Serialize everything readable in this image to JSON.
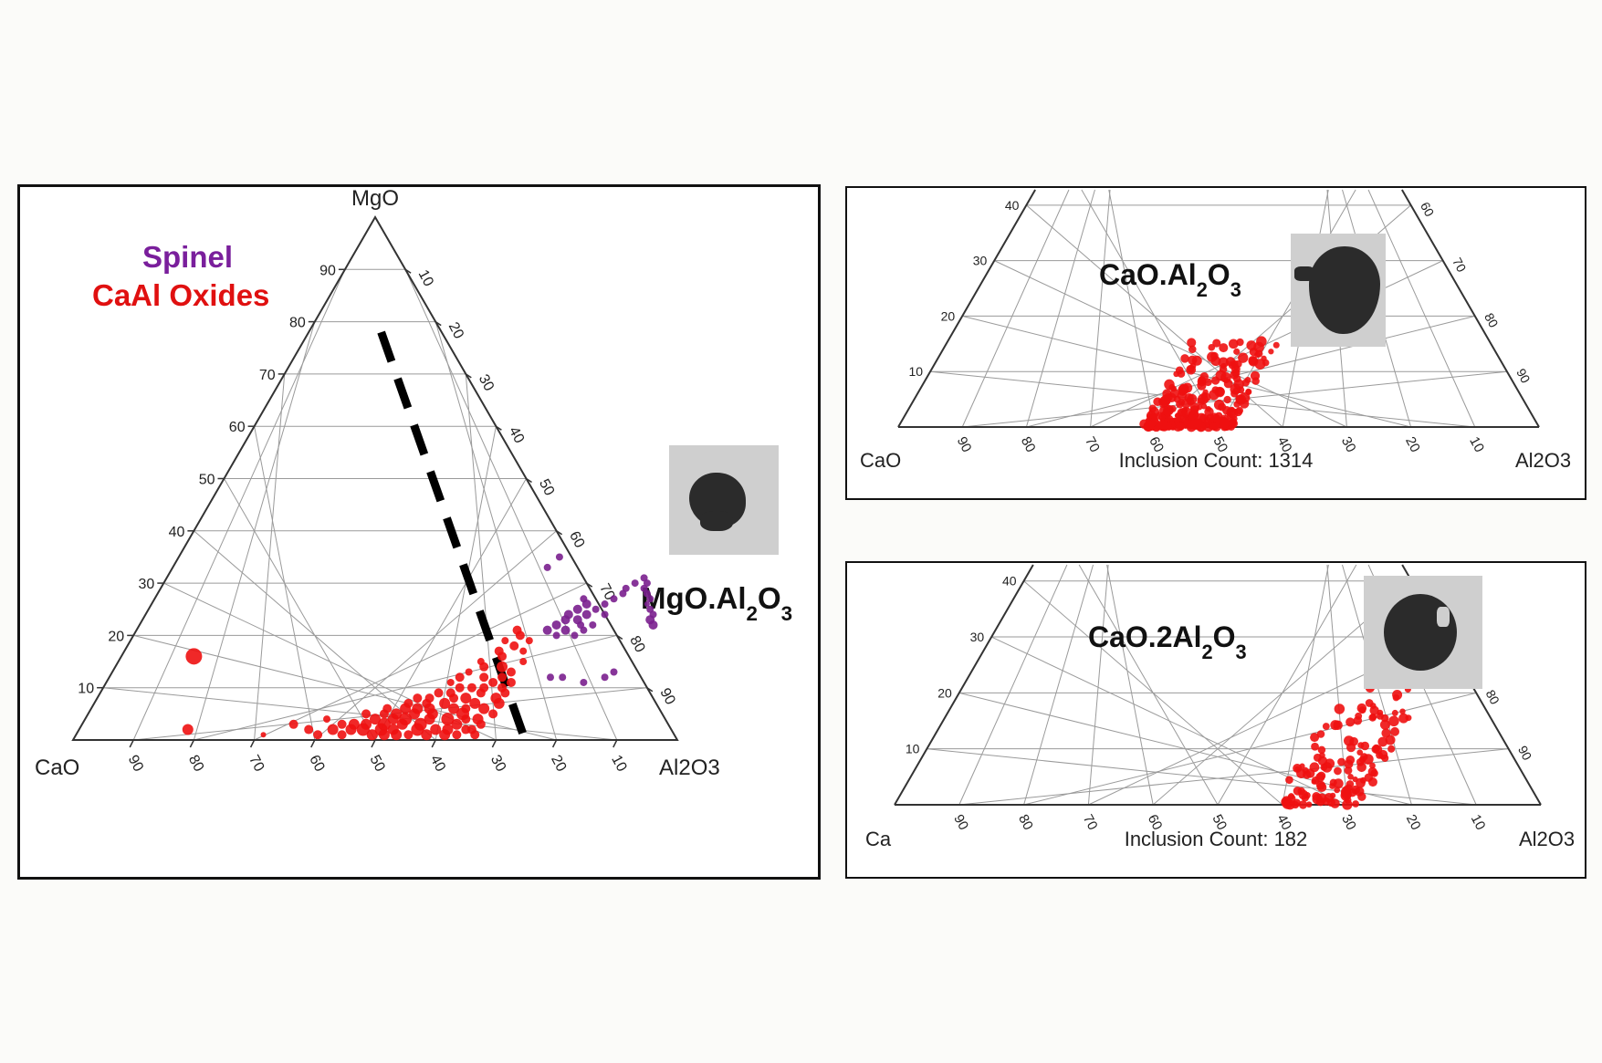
{
  "legend": {
    "spinel": {
      "label": "Spinel",
      "color": "#7a1f9c"
    },
    "caal": {
      "label": "CaAl Oxides",
      "color": "#e01010"
    }
  },
  "colors": {
    "red": "#ee1111",
    "purple": "#7a1f8e",
    "grid": "#9a9a9a",
    "axis": "#333333",
    "dash": "#000000"
  },
  "chart_data": [
    {
      "type": "scatter",
      "subtype": "ternary",
      "apex_labels": {
        "top": "MgO",
        "left": "CaO",
        "right": "Al2O3"
      },
      "left_ticks": [
        "10",
        "20",
        "30",
        "40",
        "50",
        "60",
        "70",
        "80",
        "90"
      ],
      "right_ticks": [
        "10",
        "20",
        "30",
        "40",
        "50",
        "60",
        "70",
        "80",
        "90"
      ],
      "bottom_ticks": [
        "90",
        "80",
        "70",
        "60",
        "50",
        "40",
        "30",
        "20",
        "10"
      ],
      "annotation": "MgO.Al2O3",
      "grid": true,
      "dashed_line": {
        "from": {
          "mgo": 78,
          "al2o3": 12
        },
        "to": {
          "mgo": 1,
          "al2o3": 74
        }
      },
      "series": [
        {
          "name": "CaAl Oxides",
          "color": "#ee1111",
          "points": [
            {
              "mgo": 16,
              "al2o3": 12,
              "s": 9
            },
            {
              "mgo": 2,
              "al2o3": 18,
              "s": 6
            },
            {
              "mgo": 1,
              "al2o3": 31,
              "s": 3
            },
            {
              "mgo": 3,
              "al2o3": 35,
              "s": 5
            },
            {
              "mgo": 2,
              "al2o3": 38,
              "s": 5
            },
            {
              "mgo": 4,
              "al2o3": 40,
              "s": 4
            },
            {
              "mgo": 2,
              "al2o3": 42,
              "s": 6
            },
            {
              "mgo": 1,
              "al2o3": 44,
              "s": 5
            },
            {
              "mgo": 3,
              "al2o3": 45,
              "s": 6
            },
            {
              "mgo": 5,
              "al2o3": 46,
              "s": 5
            },
            {
              "mgo": 2,
              "al2o3": 47,
              "s": 7
            },
            {
              "mgo": 4,
              "al2o3": 48,
              "s": 6
            },
            {
              "mgo": 6,
              "al2o3": 49,
              "s": 5
            },
            {
              "mgo": 1,
              "al2o3": 49,
              "s": 6
            },
            {
              "mgo": 3,
              "al2o3": 50,
              "s": 7
            },
            {
              "mgo": 5,
              "al2o3": 51,
              "s": 6
            },
            {
              "mgo": 7,
              "al2o3": 52,
              "s": 5
            },
            {
              "mgo": 2,
              "al2o3": 52,
              "s": 6
            },
            {
              "mgo": 4,
              "al2o3": 53,
              "s": 7
            },
            {
              "mgo": 6,
              "al2o3": 54,
              "s": 6
            },
            {
              "mgo": 8,
              "al2o3": 55,
              "s": 5
            },
            {
              "mgo": 1,
              "al2o3": 55,
              "s": 5
            },
            {
              "mgo": 3,
              "al2o3": 56,
              "s": 7
            },
            {
              "mgo": 5,
              "al2o3": 57,
              "s": 6
            },
            {
              "mgo": 7,
              "al2o3": 58,
              "s": 6
            },
            {
              "mgo": 9,
              "al2o3": 58,
              "s": 5
            },
            {
              "mgo": 2,
              "al2o3": 59,
              "s": 6
            },
            {
              "mgo": 4,
              "al2o3": 60,
              "s": 7
            },
            {
              "mgo": 6,
              "al2o3": 60,
              "s": 6
            },
            {
              "mgo": 8,
              "al2o3": 61,
              "s": 6
            },
            {
              "mgo": 10,
              "al2o3": 61,
              "s": 5
            },
            {
              "mgo": 3,
              "al2o3": 62,
              "s": 6
            },
            {
              "mgo": 5,
              "al2o3": 62,
              "s": 7
            },
            {
              "mgo": 7,
              "al2o3": 63,
              "s": 6
            },
            {
              "mgo": 9,
              "al2o3": 63,
              "s": 5
            },
            {
              "mgo": 11,
              "al2o3": 64,
              "s": 5
            },
            {
              "mgo": 2,
              "al2o3": 64,
              "s": 5
            },
            {
              "mgo": 4,
              "al2o3": 65,
              "s": 6
            },
            {
              "mgo": 6,
              "al2o3": 65,
              "s": 6
            },
            {
              "mgo": 8,
              "al2o3": 66,
              "s": 6
            },
            {
              "mgo": 10,
              "al2o3": 66,
              "s": 5
            },
            {
              "mgo": 12,
              "al2o3": 65,
              "s": 5
            },
            {
              "mgo": 14,
              "al2o3": 64,
              "s": 6
            },
            {
              "mgo": 16,
              "al2o3": 63,
              "s": 5
            },
            {
              "mgo": 18,
              "al2o3": 64,
              "s": 5
            },
            {
              "mgo": 20,
              "al2o3": 64,
              "s": 5
            },
            {
              "mgo": 13,
              "al2o3": 66,
              "s": 5
            },
            {
              "mgo": 15,
              "al2o3": 67,
              "s": 4
            },
            {
              "mgo": 11,
              "al2o3": 67,
              "s": 5
            },
            {
              "mgo": 17,
              "al2o3": 66,
              "s": 4
            },
            {
              "mgo": 19,
              "al2o3": 66,
              "s": 4
            },
            {
              "mgo": 3,
              "al2o3": 66,
              "s": 5
            },
            {
              "mgo": 5,
              "al2o3": 67,
              "s": 5
            },
            {
              "mgo": 7,
              "al2o3": 67,
              "s": 6
            },
            {
              "mgo": 9,
              "al2o3": 67,
              "s": 5
            },
            {
              "mgo": 1,
              "al2o3": 66,
              "s": 5
            },
            {
              "mgo": 2,
              "al2o3": 61,
              "s": 6
            },
            {
              "mgo": 4,
              "al2o3": 57,
              "s": 6
            },
            {
              "mgo": 6,
              "al2o3": 56,
              "s": 6
            },
            {
              "mgo": 8,
              "al2o3": 59,
              "s": 5
            },
            {
              "mgo": 10,
              "al2o3": 59,
              "s": 5
            },
            {
              "mgo": 12,
              "al2o3": 62,
              "s": 5
            },
            {
              "mgo": 14,
              "al2o3": 61,
              "s": 5
            },
            {
              "mgo": 11,
              "al2o3": 57,
              "s": 4
            },
            {
              "mgo": 13,
              "al2o3": 59,
              "s": 4
            },
            {
              "mgo": 3,
              "al2o3": 53,
              "s": 6
            },
            {
              "mgo": 5,
              "al2o3": 54,
              "s": 6
            },
            {
              "mgo": 7,
              "al2o3": 55,
              "s": 5
            },
            {
              "mgo": 9,
              "al2o3": 56,
              "s": 5
            },
            {
              "mgo": 1,
              "al2o3": 51,
              "s": 6
            },
            {
              "mgo": 3,
              "al2o3": 47,
              "s": 6
            },
            {
              "mgo": 5,
              "al2o3": 49,
              "s": 5
            },
            {
              "mgo": 2,
              "al2o3": 50,
              "s": 7
            },
            {
              "mgo": 4,
              "al2o3": 51,
              "s": 6
            },
            {
              "mgo": 6,
              "al2o3": 52,
              "s": 6
            },
            {
              "mgo": 8,
              "al2o3": 53,
              "s": 5
            },
            {
              "mgo": 1,
              "al2o3": 53,
              "s": 6
            },
            {
              "mgo": 2,
              "al2o3": 56,
              "s": 7
            },
            {
              "mgo": 1,
              "al2o3": 58,
              "s": 6
            },
            {
              "mgo": 1,
              "al2o3": 61,
              "s": 6
            },
            {
              "mgo": 1,
              "al2o3": 63,
              "s": 5
            },
            {
              "mgo": 2,
              "al2o3": 45,
              "s": 6
            },
            {
              "mgo": 1,
              "al2o3": 40,
              "s": 5
            },
            {
              "mgo": 3,
              "al2o3": 43,
              "s": 5
            },
            {
              "mgo": 12,
              "al2o3": 58,
              "s": 5
            },
            {
              "mgo": 15,
              "al2o3": 60,
              "s": 4
            },
            {
              "mgo": 17,
              "al2o3": 62,
              "s": 5
            },
            {
              "mgo": 19,
              "al2o3": 62,
              "s": 4
            },
            {
              "mgo": 21,
              "al2o3": 63,
              "s": 5
            },
            {
              "mgo": 6,
              "al2o3": 62,
              "s": 5
            },
            {
              "mgo": 4,
              "al2o3": 63,
              "s": 5
            },
            {
              "mgo": 2,
              "al2o3": 65,
              "s": 5
            },
            {
              "mgo": 10,
              "al2o3": 63,
              "s": 5
            }
          ]
        },
        {
          "name": "Spinel",
          "color": "#7a1f8e",
          "points": [
            {
              "mgo": 21,
              "al2o3": 68,
              "s": 5
            },
            {
              "mgo": 22,
              "al2o3": 69,
              "s": 5
            },
            {
              "mgo": 23,
              "al2o3": 70,
              "s": 5
            },
            {
              "mgo": 24,
              "al2o3": 70,
              "s": 5
            },
            {
              "mgo": 25,
              "al2o3": 71,
              "s": 5
            },
            {
              "mgo": 23,
              "al2o3": 72,
              "s": 5
            },
            {
              "mgo": 22,
              "al2o3": 73,
              "s": 4
            },
            {
              "mgo": 24,
              "al2o3": 73,
              "s": 5
            },
            {
              "mgo": 26,
              "al2o3": 72,
              "s": 5
            },
            {
              "mgo": 27,
              "al2o3": 71,
              "s": 4
            },
            {
              "mgo": 25,
              "al2o3": 74,
              "s": 4
            },
            {
              "mgo": 21,
              "al2o3": 71,
              "s": 5
            },
            {
              "mgo": 20,
              "al2o3": 70,
              "s": 4
            },
            {
              "mgo": 26,
              "al2o3": 75,
              "s": 4
            },
            {
              "mgo": 27,
              "al2o3": 76,
              "s": 4
            },
            {
              "mgo": 28,
              "al2o3": 77,
              "s": 4
            },
            {
              "mgo": 29,
              "al2o3": 77,
              "s": 4
            },
            {
              "mgo": 30,
              "al2o3": 78,
              "s": 4
            },
            {
              "mgo": 31,
              "al2o3": 79,
              "s": 4
            },
            {
              "mgo": 30,
              "al2o3": 80,
              "s": 4
            },
            {
              "mgo": 29,
              "al2o3": 80,
              "s": 4
            },
            {
              "mgo": 28,
              "al2o3": 81,
              "s": 4
            },
            {
              "mgo": 27,
              "al2o3": 82,
              "s": 4
            },
            {
              "mgo": 26,
              "al2o3": 82,
              "s": 3
            },
            {
              "mgo": 25,
              "al2o3": 83,
              "s": 4
            },
            {
              "mgo": 24,
              "al2o3": 84,
              "s": 4
            },
            {
              "mgo": 23,
              "al2o3": 84,
              "s": 5
            },
            {
              "mgo": 22,
              "al2o3": 85,
              "s": 5
            },
            {
              "mgo": 35,
              "al2o3": 63,
              "s": 4
            },
            {
              "mgo": 33,
              "al2o3": 62,
              "s": 4
            },
            {
              "mgo": 12,
              "al2o3": 73,
              "s": 4
            },
            {
              "mgo": 12,
              "al2o3": 75,
              "s": 4
            },
            {
              "mgo": 11,
              "al2o3": 79,
              "s": 4
            },
            {
              "mgo": 12,
              "al2o3": 82,
              "s": 4
            },
            {
              "mgo": 13,
              "al2o3": 83,
              "s": 4
            },
            {
              "mgo": 24,
              "al2o3": 76,
              "s": 4
            },
            {
              "mgo": 22,
              "al2o3": 75,
              "s": 4
            },
            {
              "mgo": 20,
              "al2o3": 73,
              "s": 4
            },
            {
              "mgo": 21,
              "al2o3": 74,
              "s": 4
            }
          ]
        }
      ]
    },
    {
      "type": "scatter",
      "subtype": "ternary-partial",
      "title": "CaO.Al2O3",
      "corner_labels": {
        "left": "CaO",
        "right": "Al2O3"
      },
      "left_ticks": [
        "10",
        "20",
        "30",
        "40"
      ],
      "right_ticks": [
        "60",
        "70",
        "80",
        "90"
      ],
      "bottom_ticks": [
        "90",
        "80",
        "70",
        "60",
        "50",
        "40",
        "30",
        "20",
        "10"
      ],
      "count_text": "Inclusion Count: 1314",
      "cluster": {
        "color": "#ee1111",
        "mgo_range": [
          0,
          16
        ],
        "al2o3_range": [
          38,
          52
        ]
      }
    },
    {
      "type": "scatter",
      "subtype": "ternary-partial",
      "title": "CaO.2Al2O3",
      "corner_labels": {
        "left": "Ca",
        "right": "Al2O3"
      },
      "left_ticks": [
        "10",
        "20",
        "30",
        "40"
      ],
      "right_ticks": [
        "60",
        "70",
        "80",
        "90"
      ],
      "bottom_ticks": [
        "90",
        "80",
        "70",
        "60",
        "50",
        "40",
        "30",
        "20",
        "10"
      ],
      "count_text": "Inclusion Count: 182",
      "cluster": {
        "color": "#ee1111",
        "mgo_range": [
          0,
          21
        ],
        "al2o3_range": [
          58,
          72
        ]
      }
    }
  ]
}
